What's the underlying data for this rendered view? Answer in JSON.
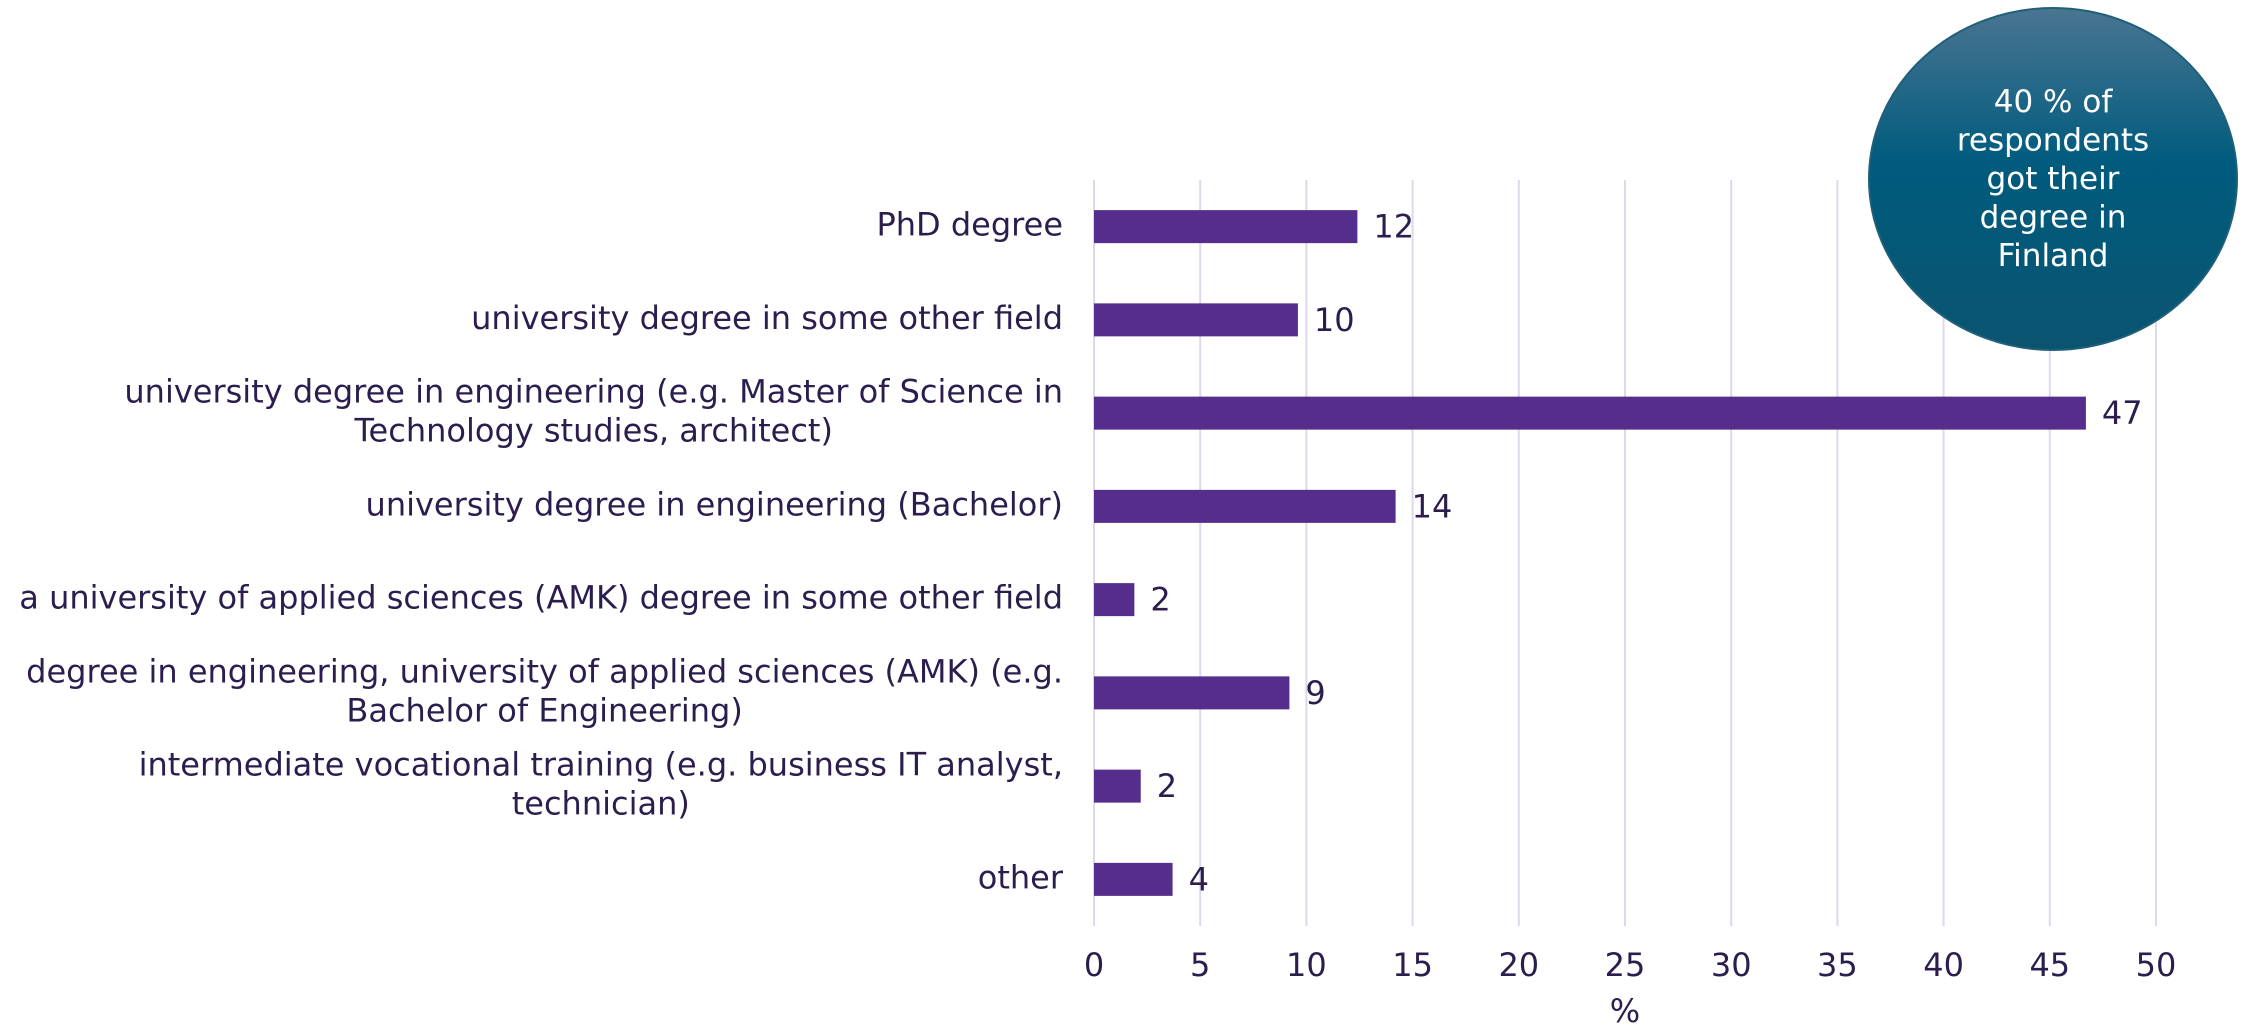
{
  "chart_data": {
    "type": "bar",
    "orientation": "horizontal",
    "categories": [
      "PhD degree",
      "university degree in some other field",
      "university degree in engineering (e.g. Master of Science in\nTechnology studies, architect)",
      "university degree in engineering (Bachelor)",
      "a university of applied sciences (AMK) degree in some other field",
      "degree in engineering, university of applied sciences (AMK) (e.g.\nBachelor of Engineering)",
      "intermediate vocational training (e.g. business IT analyst,\ntechnician)",
      "other"
    ],
    "values": [
      12.4,
      9.6,
      46.7,
      14.2,
      1.9,
      9.2,
      2.2,
      3.7
    ],
    "value_labels": [
      "12",
      "10",
      "47",
      "14",
      "2",
      "9",
      "2",
      "4"
    ],
    "color": "#552d8c",
    "xlim": [
      0,
      50
    ],
    "xticks": [
      0,
      5,
      10,
      15,
      20,
      25,
      30,
      35,
      40,
      45,
      50
    ],
    "xlabel": "%",
    "grid": true,
    "annotation": "40 % of\nrespondents\ngot their\ndegree in\nFinland"
  }
}
